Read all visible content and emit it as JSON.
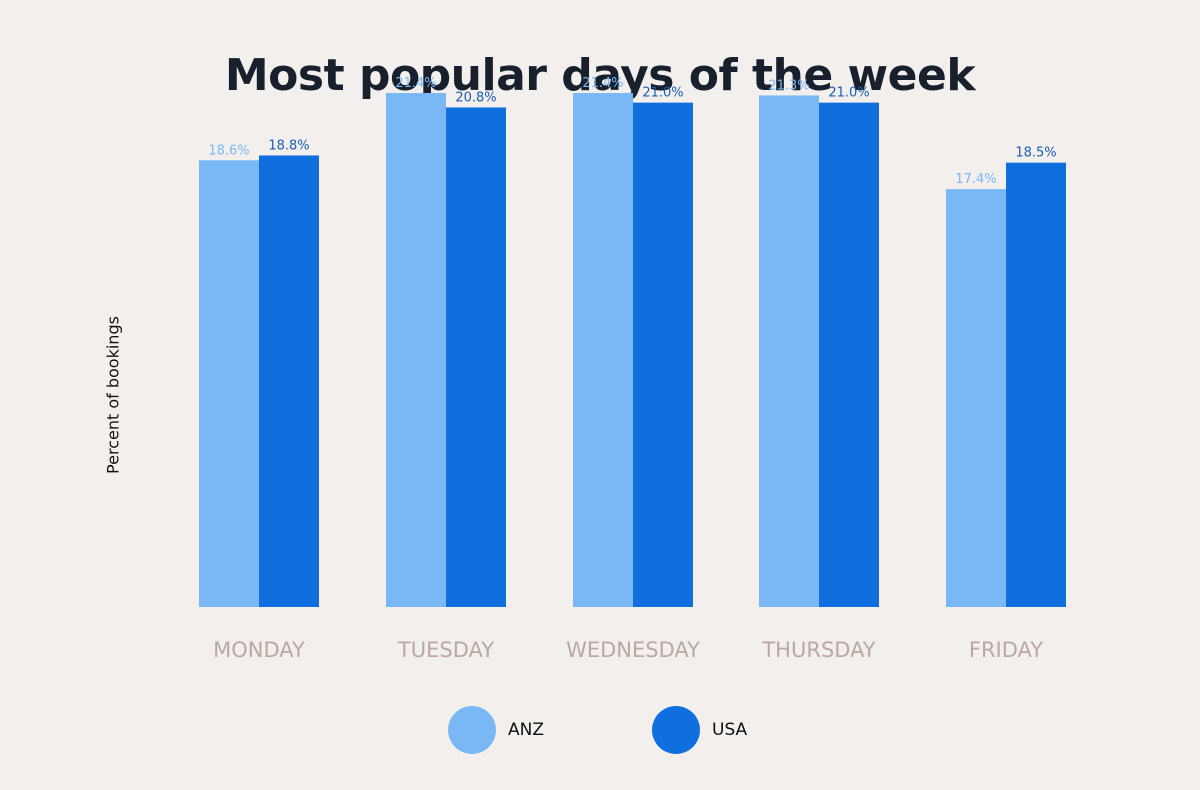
{
  "chart_data": {
    "type": "bar",
    "title": "Most popular days of the week",
    "ylabel": "Percent of bookings",
    "xlabel": "",
    "categories": [
      "MONDAY",
      "TUESDAY",
      "WEDNESDAY",
      "THURSDAY",
      "FRIDAY"
    ],
    "series": [
      {
        "name": "ANZ",
        "color": "#7ab8f5",
        "values": [
          18.6,
          21.4,
          21.4,
          21.3,
          17.4
        ],
        "labels": [
          "18.6%",
          "21.4%",
          "21.4%",
          "21.3%",
          "17.4%"
        ]
      },
      {
        "name": "USA",
        "color": "#0f6fde",
        "values": [
          18.8,
          20.8,
          21.0,
          21.0,
          18.5
        ],
        "labels": [
          "18.8%",
          "20.8%",
          "21.0%",
          "21.0%",
          "18.5%"
        ]
      }
    ],
    "ylim": [
      0,
      24
    ],
    "grid": false,
    "legend_position": "bottom-center",
    "colors": {
      "background": "#f2efed",
      "title": "#17202c",
      "category_label": "#b9a9a3",
      "anz_label": "#7ab8f5",
      "usa_label": "#1a5fb4"
    }
  }
}
